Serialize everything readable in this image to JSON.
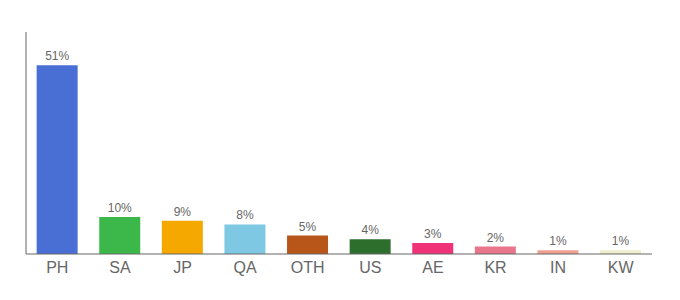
{
  "chart_data": {
    "type": "bar",
    "categories": [
      "PH",
      "SA",
      "JP",
      "QA",
      "OTH",
      "US",
      "AE",
      "KR",
      "IN",
      "KW"
    ],
    "values": [
      51,
      10,
      9,
      8,
      5,
      4,
      3,
      2,
      1,
      1
    ],
    "value_labels": [
      "51%",
      "10%",
      "9%",
      "8%",
      "5%",
      "4%",
      "3%",
      "2%",
      "1%",
      "1%"
    ],
    "data_labels": true,
    "colors": [
      "#4a6fd4",
      "#3cb84a",
      "#f5a800",
      "#7ec8e3",
      "#b8561a",
      "#2d6e2d",
      "#f03278",
      "#e8758a",
      "#f0a090",
      "#eeeecc"
    ],
    "ylim": [
      0,
      60
    ],
    "grid": false,
    "tick_labels": "x"
  }
}
